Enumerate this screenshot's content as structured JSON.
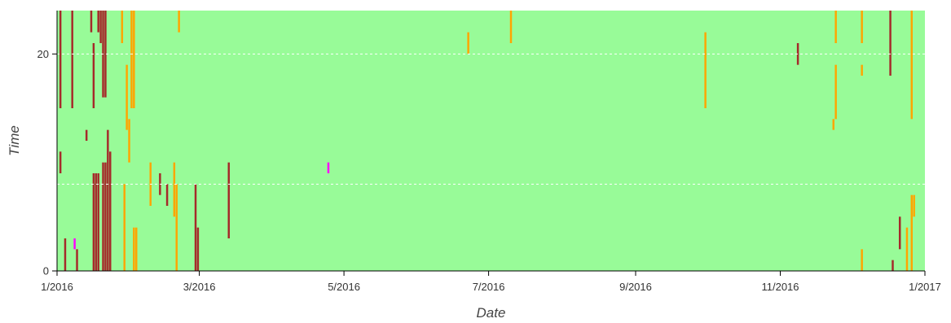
{
  "chart_data": {
    "type": "heatmap",
    "xlabel": "Date",
    "ylabel": "Time",
    "x_range": [
      "2016-01-01",
      "2017-01-01"
    ],
    "y_range": [
      0,
      24
    ],
    "x_tick_labels": [
      "1/2016",
      "3/2016",
      "5/2016",
      "7/2016",
      "9/2016",
      "11/2016",
      "1/2017"
    ],
    "x_ticks": [
      "2016-01-01",
      "2016-03-01",
      "2016-05-01",
      "2016-07-01",
      "2016-09-01",
      "2016-11-01",
      "2017-01-01"
    ],
    "y_tick_labels": [
      "0",
      "20"
    ],
    "y_ticks": [
      0,
      20
    ],
    "gridlines_y": [
      8,
      20
    ],
    "background_state": "normal",
    "state_colors": {
      "normal": "#98fb98",
      "warning": "#ffa500",
      "error": "#a52a2a",
      "special": "#ff00ff"
    },
    "events": [
      {
        "date": "2016-01-02",
        "t0": 15,
        "t1": 24,
        "state": "error"
      },
      {
        "date": "2016-01-02",
        "t0": 9,
        "t1": 11,
        "state": "error"
      },
      {
        "date": "2016-01-04",
        "t0": 0,
        "t1": 3,
        "state": "error"
      },
      {
        "date": "2016-01-07",
        "t0": 15,
        "t1": 24,
        "state": "error"
      },
      {
        "date": "2016-01-08",
        "t0": 2,
        "t1": 3,
        "state": "special"
      },
      {
        "date": "2016-01-09",
        "t0": 0,
        "t1": 2,
        "state": "error"
      },
      {
        "date": "2016-01-13",
        "t0": 12,
        "t1": 13,
        "state": "error"
      },
      {
        "date": "2016-01-15",
        "t0": 22,
        "t1": 24,
        "state": "error"
      },
      {
        "date": "2016-01-16",
        "t0": 15,
        "t1": 21,
        "state": "error"
      },
      {
        "date": "2016-01-16",
        "t0": 0,
        "t1": 9,
        "state": "error"
      },
      {
        "date": "2016-01-17",
        "t0": 0,
        "t1": 9,
        "state": "error"
      },
      {
        "date": "2016-01-18",
        "t0": 22,
        "t1": 24,
        "state": "error"
      },
      {
        "date": "2016-01-18",
        "t0": 0,
        "t1": 9,
        "state": "error"
      },
      {
        "date": "2016-01-19",
        "t0": 21,
        "t1": 24,
        "state": "error"
      },
      {
        "date": "2016-01-20",
        "t0": 16,
        "t1": 24,
        "state": "error"
      },
      {
        "date": "2016-01-20",
        "t0": 0,
        "t1": 10,
        "state": "error"
      },
      {
        "date": "2016-01-21",
        "t0": 16,
        "t1": 24,
        "state": "error"
      },
      {
        "date": "2016-01-21",
        "t0": 0,
        "t1": 10,
        "state": "error"
      },
      {
        "date": "2016-01-22",
        "t0": 0,
        "t1": 13,
        "state": "error"
      },
      {
        "date": "2016-01-23",
        "t0": 0,
        "t1": 11,
        "state": "error"
      },
      {
        "date": "2016-01-28",
        "t0": 21,
        "t1": 24,
        "state": "warning"
      },
      {
        "date": "2016-01-29",
        "t0": 0,
        "t1": 8,
        "state": "warning"
      },
      {
        "date": "2016-01-30",
        "t0": 13,
        "t1": 19,
        "state": "warning"
      },
      {
        "date": "2016-01-31",
        "t0": 10,
        "t1": 14,
        "state": "warning"
      },
      {
        "date": "2016-02-01",
        "t0": 15,
        "t1": 24,
        "state": "warning"
      },
      {
        "date": "2016-02-02",
        "t0": 15,
        "t1": 24,
        "state": "warning"
      },
      {
        "date": "2016-02-02",
        "t0": 0,
        "t1": 4,
        "state": "warning"
      },
      {
        "date": "2016-02-03",
        "t0": 0,
        "t1": 4,
        "state": "warning"
      },
      {
        "date": "2016-02-09",
        "t0": 6,
        "t1": 10,
        "state": "warning"
      },
      {
        "date": "2016-02-13",
        "t0": 7,
        "t1": 9,
        "state": "error"
      },
      {
        "date": "2016-02-16",
        "t0": 6,
        "t1": 8,
        "state": "error"
      },
      {
        "date": "2016-02-19",
        "t0": 5,
        "t1": 10,
        "state": "warning"
      },
      {
        "date": "2016-02-20",
        "t0": 0,
        "t1": 8,
        "state": "warning"
      },
      {
        "date": "2016-02-21",
        "t0": 22,
        "t1": 24,
        "state": "warning"
      },
      {
        "date": "2016-02-28",
        "t0": 0,
        "t1": 8,
        "state": "error"
      },
      {
        "date": "2016-02-29",
        "t0": 0,
        "t1": 4,
        "state": "error"
      },
      {
        "date": "2016-03-13",
        "t0": 3,
        "t1": 10,
        "state": "error"
      },
      {
        "date": "2016-04-24",
        "t0": 9,
        "t1": 10,
        "state": "special"
      },
      {
        "date": "2016-06-22",
        "t0": 20,
        "t1": 22,
        "state": "warning"
      },
      {
        "date": "2016-07-10",
        "t0": 21,
        "t1": 24,
        "state": "warning"
      },
      {
        "date": "2016-09-30",
        "t0": 15,
        "t1": 22,
        "state": "warning"
      },
      {
        "date": "2016-11-08",
        "t0": 19,
        "t1": 21,
        "state": "error"
      },
      {
        "date": "2016-11-23",
        "t0": 13,
        "t1": 14,
        "state": "warning"
      },
      {
        "date": "2016-11-24",
        "t0": 21,
        "t1": 24,
        "state": "warning"
      },
      {
        "date": "2016-11-24",
        "t0": 14,
        "t1": 19,
        "state": "warning"
      },
      {
        "date": "2016-12-05",
        "t0": 21,
        "t1": 24,
        "state": "warning"
      },
      {
        "date": "2016-12-05",
        "t0": 18,
        "t1": 19,
        "state": "warning"
      },
      {
        "date": "2016-12-05",
        "t0": 0,
        "t1": 2,
        "state": "warning"
      },
      {
        "date": "2016-12-17",
        "t0": 18,
        "t1": 24,
        "state": "error"
      },
      {
        "date": "2016-12-18",
        "t0": 0,
        "t1": 1,
        "state": "error"
      },
      {
        "date": "2016-12-21",
        "t0": 2,
        "t1": 5,
        "state": "error"
      },
      {
        "date": "2016-12-24",
        "t0": 0,
        "t1": 4,
        "state": "warning"
      },
      {
        "date": "2016-12-26",
        "t0": 14,
        "t1": 24,
        "state": "warning"
      },
      {
        "date": "2016-12-26",
        "t0": 0,
        "t1": 7,
        "state": "warning"
      },
      {
        "date": "2016-12-27",
        "t0": 5,
        "t1": 7,
        "state": "warning"
      }
    ]
  }
}
